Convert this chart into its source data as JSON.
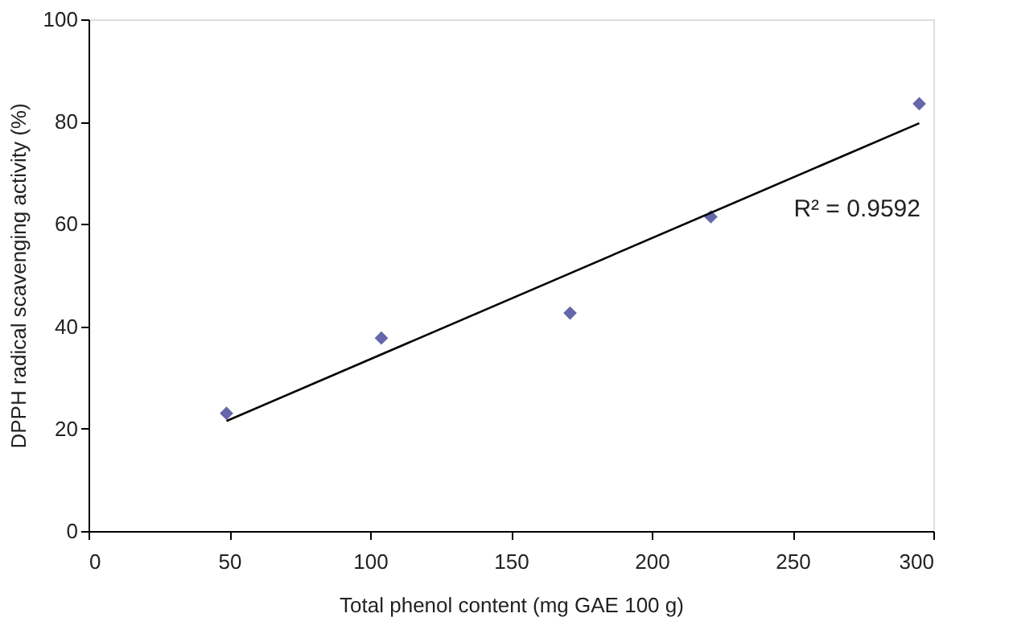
{
  "chart_data": {
    "type": "scatter",
    "xlabel": "Total phenol content (mg GAE 100 g)",
    "ylabel": "DPPH radical scavenging activity (%)",
    "annotations": [
      "R² = 0.9592"
    ],
    "xlim": [
      0,
      300
    ],
    "xticks": [
      0,
      50,
      100,
      150,
      200,
      250,
      300
    ],
    "ylim": [
      0,
      100
    ],
    "yticks": [
      0,
      20,
      40,
      60,
      80,
      100
    ],
    "grid": false,
    "marker": "diamond",
    "series": [
      {
        "color": "#6666aa",
        "x": [
          49,
          104,
          171,
          221,
          295
        ],
        "values": [
          23,
          37.7,
          42.6,
          61.4,
          83.5
        ]
      },
      {
        "type": "line",
        "color": "#000000",
        "x": [
          49,
          295
        ],
        "values": [
          21.5,
          79.7
        ],
        "line_style": "solid",
        "marker": "none"
      }
    ]
  }
}
